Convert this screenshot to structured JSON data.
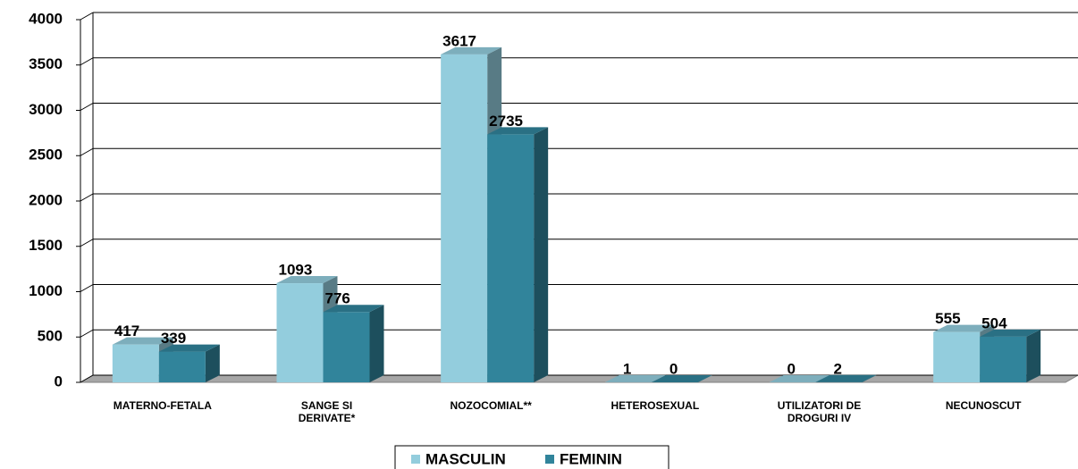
{
  "chart_data": {
    "type": "bar3d",
    "categories": [
      "MATERNO-FETALA",
      "SANGE SI DERIVATE*",
      "NOZOCOMIAL**",
      "HETEROSEXUAL",
      "UTILIZATORI DE DROGURI IV",
      "NECUNOSCUT"
    ],
    "series": [
      {
        "name": "MASCULIN",
        "color": "#93cddd",
        "values": [
          417,
          1093,
          3617,
          1,
          0,
          555
        ]
      },
      {
        "name": "FEMININ",
        "color": "#31849b",
        "values": [
          339,
          776,
          2735,
          0,
          2,
          504
        ]
      }
    ],
    "ylim": [
      0,
      4000
    ],
    "yticks": [
      0,
      500,
      1000,
      1500,
      2000,
      2500,
      3000,
      3500,
      4000
    ],
    "grid": true,
    "legend": "bottom"
  }
}
